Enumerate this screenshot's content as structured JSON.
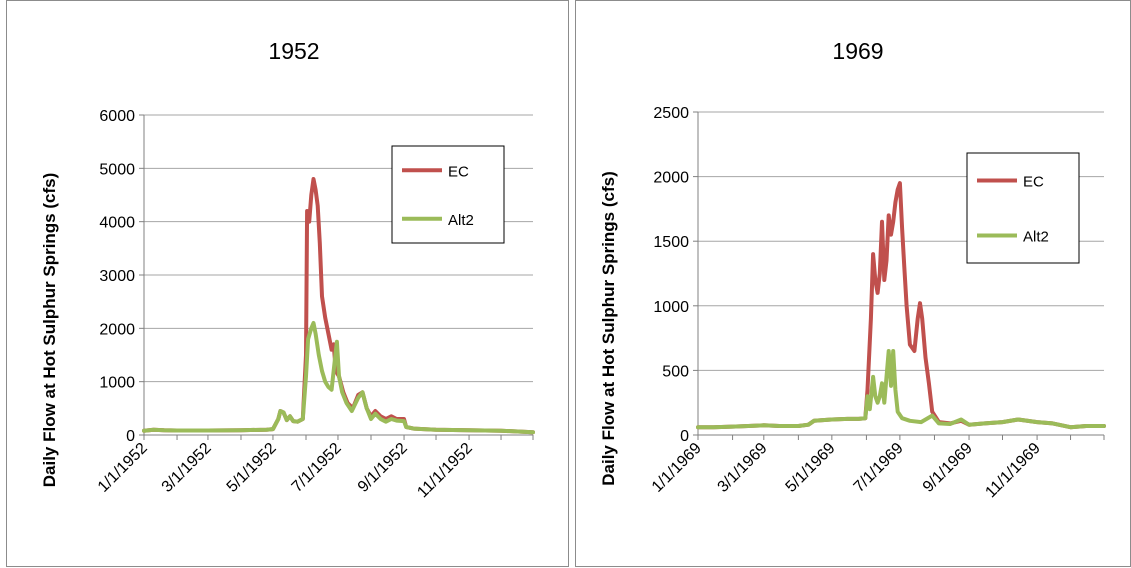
{
  "colors": {
    "EC": "#c0504d",
    "Alt2": "#9bbb59",
    "grid": "#a6a6a6",
    "axis": "#808080"
  },
  "chart_data": [
    {
      "type": "line",
      "title": "1952",
      "ylabel": "Daily Flow at Hot Sulphur Springs (cfs)",
      "xlabel": "",
      "ylim": [
        0,
        6000
      ],
      "yticks": [
        "0",
        "1000",
        "2000",
        "3000",
        "4000",
        "5000",
        "6000"
      ],
      "xlim": [
        "1952-01-01",
        "1952-12-31"
      ],
      "xticks": [
        "1/1/1952",
        "3/1/1952",
        "5/1/1952",
        "7/1/1952",
        "9/1/1952",
        "11/1/1952"
      ],
      "grid": true,
      "legend_position": "top-right",
      "series": [
        {
          "name": "EC",
          "points": [
            [
              "1952-01-01",
              80
            ],
            [
              "1952-01-10",
              100
            ],
            [
              "1952-01-20",
              90
            ],
            [
              "1952-02-01",
              85
            ],
            [
              "1952-03-01",
              85
            ],
            [
              "1952-04-01",
              90
            ],
            [
              "1952-04-25",
              100
            ],
            [
              "1952-05-01",
              110
            ],
            [
              "1952-05-06",
              300
            ],
            [
              "1952-05-08",
              450
            ],
            [
              "1952-05-11",
              420
            ],
            [
              "1952-05-14",
              280
            ],
            [
              "1952-05-17",
              350
            ],
            [
              "1952-05-20",
              260
            ],
            [
              "1952-05-24",
              250
            ],
            [
              "1952-05-29",
              300
            ],
            [
              "1952-06-01",
              1500
            ],
            [
              "1952-06-02",
              4200
            ],
            [
              "1952-06-04",
              4000
            ],
            [
              "1952-06-06",
              4500
            ],
            [
              "1952-06-08",
              4800
            ],
            [
              "1952-06-10",
              4600
            ],
            [
              "1952-06-12",
              4300
            ],
            [
              "1952-06-14",
              3600
            ],
            [
              "1952-06-16",
              2600
            ],
            [
              "1952-06-19",
              2200
            ],
            [
              "1952-06-22",
              1900
            ],
            [
              "1952-06-25",
              1600
            ],
            [
              "1952-06-27",
              1700
            ],
            [
              "1952-06-29",
              1200
            ],
            [
              "1952-07-02",
              1100
            ],
            [
              "1952-07-06",
              800
            ],
            [
              "1952-07-10",
              600
            ],
            [
              "1952-07-15",
              500
            ],
            [
              "1952-07-20",
              750
            ],
            [
              "1952-07-24",
              800
            ],
            [
              "1952-07-28",
              500
            ],
            [
              "1952-08-01",
              350
            ],
            [
              "1952-08-05",
              450
            ],
            [
              "1952-08-10",
              350
            ],
            [
              "1952-08-15",
              300
            ],
            [
              "1952-08-20",
              350
            ],
            [
              "1952-08-25",
              300
            ],
            [
              "1952-09-01",
              300
            ],
            [
              "1952-09-03",
              150
            ],
            [
              "1952-09-10",
              120
            ],
            [
              "1952-10-01",
              100
            ],
            [
              "1952-11-01",
              90
            ],
            [
              "1952-12-01",
              80
            ],
            [
              "1952-12-31",
              50
            ]
          ]
        },
        {
          "name": "Alt2",
          "points": [
            [
              "1952-01-01",
              80
            ],
            [
              "1952-01-10",
              100
            ],
            [
              "1952-01-20",
              90
            ],
            [
              "1952-02-01",
              85
            ],
            [
              "1952-03-01",
              85
            ],
            [
              "1952-04-01",
              90
            ],
            [
              "1952-04-25",
              100
            ],
            [
              "1952-05-01",
              110
            ],
            [
              "1952-05-06",
              300
            ],
            [
              "1952-05-08",
              450
            ],
            [
              "1952-05-11",
              420
            ],
            [
              "1952-05-14",
              280
            ],
            [
              "1952-05-17",
              350
            ],
            [
              "1952-05-20",
              260
            ],
            [
              "1952-05-24",
              250
            ],
            [
              "1952-05-29",
              300
            ],
            [
              "1952-06-01",
              1100
            ],
            [
              "1952-06-03",
              1800
            ],
            [
              "1952-06-06",
              2000
            ],
            [
              "1952-06-08",
              2100
            ],
            [
              "1952-06-10",
              1900
            ],
            [
              "1952-06-13",
              1500
            ],
            [
              "1952-06-16",
              1200
            ],
            [
              "1952-06-19",
              1000
            ],
            [
              "1952-06-22",
              900
            ],
            [
              "1952-06-25",
              850
            ],
            [
              "1952-06-28",
              1400
            ],
            [
              "1952-06-30",
              1750
            ],
            [
              "1952-07-02",
              1100
            ],
            [
              "1952-07-05",
              800
            ],
            [
              "1952-07-09",
              600
            ],
            [
              "1952-07-14",
              450
            ],
            [
              "1952-07-20",
              700
            ],
            [
              "1952-07-24",
              800
            ],
            [
              "1952-07-28",
              500
            ],
            [
              "1952-08-01",
              300
            ],
            [
              "1952-08-05",
              400
            ],
            [
              "1952-08-10",
              300
            ],
            [
              "1952-08-15",
              250
            ],
            [
              "1952-08-20",
              300
            ],
            [
              "1952-08-25",
              270
            ],
            [
              "1952-09-01",
              260
            ],
            [
              "1952-09-03",
              150
            ],
            [
              "1952-09-10",
              120
            ],
            [
              "1952-10-01",
              100
            ],
            [
              "1952-11-01",
              90
            ],
            [
              "1952-12-01",
              80
            ],
            [
              "1952-12-31",
              50
            ]
          ]
        }
      ]
    },
    {
      "type": "line",
      "title": "1969",
      "ylabel": "Daily Flow at Hot Sulphur Springs (cfs)",
      "xlabel": "",
      "ylim": [
        0,
        2500
      ],
      "yticks": [
        "0",
        "500",
        "1000",
        "1500",
        "2000",
        "2500"
      ],
      "xlim": [
        "1969-01-01",
        "1969-12-31"
      ],
      "xticks": [
        "1/1/1969",
        "3/1/1969",
        "5/1/1969",
        "7/1/1969",
        "9/1/1969",
        "11/1/1969"
      ],
      "grid": true,
      "legend_position": "top-right",
      "series": [
        {
          "name": "EC",
          "points": [
            [
              "1969-01-01",
              60
            ],
            [
              "1969-01-15",
              60
            ],
            [
              "1969-02-01",
              65
            ],
            [
              "1969-02-15",
              70
            ],
            [
              "1969-03-01",
              75
            ],
            [
              "1969-03-15",
              70
            ],
            [
              "1969-04-01",
              70
            ],
            [
              "1969-04-10",
              80
            ],
            [
              "1969-04-15",
              110
            ],
            [
              "1969-05-01",
              120
            ],
            [
              "1969-05-15",
              125
            ],
            [
              "1969-05-25",
              125
            ],
            [
              "1969-05-31",
              130
            ],
            [
              "1969-06-02",
              350
            ],
            [
              "1969-06-05",
              900
            ],
            [
              "1969-06-07",
              1400
            ],
            [
              "1969-06-09",
              1200
            ],
            [
              "1969-06-11",
              1100
            ],
            [
              "1969-06-13",
              1250
            ],
            [
              "1969-06-15",
              1650
            ],
            [
              "1969-06-17",
              1200
            ],
            [
              "1969-06-19",
              1350
            ],
            [
              "1969-06-21",
              1700
            ],
            [
              "1969-06-23",
              1550
            ],
            [
              "1969-06-25",
              1650
            ],
            [
              "1969-06-27",
              1800
            ],
            [
              "1969-06-29",
              1900
            ],
            [
              "1969-07-01",
              1950
            ],
            [
              "1969-07-03",
              1600
            ],
            [
              "1969-07-05",
              1300
            ],
            [
              "1969-07-07",
              1000
            ],
            [
              "1969-07-10",
              700
            ],
            [
              "1969-07-14",
              650
            ],
            [
              "1969-07-17",
              900
            ],
            [
              "1969-07-19",
              1020
            ],
            [
              "1969-07-21",
              900
            ],
            [
              "1969-07-24",
              600
            ],
            [
              "1969-07-27",
              400
            ],
            [
              "1969-07-30",
              180
            ],
            [
              "1969-08-05",
              100
            ],
            [
              "1969-08-15",
              90
            ],
            [
              "1969-08-25",
              110
            ],
            [
              "1969-09-01",
              80
            ],
            [
              "1969-09-15",
              90
            ],
            [
              "1969-10-01",
              100
            ],
            [
              "1969-10-15",
              120
            ],
            [
              "1969-11-01",
              100
            ],
            [
              "1969-11-15",
              90
            ],
            [
              "1969-12-01",
              60
            ],
            [
              "1969-12-15",
              70
            ],
            [
              "1969-12-31",
              70
            ]
          ]
        },
        {
          "name": "Alt2",
          "points": [
            [
              "1969-01-01",
              60
            ],
            [
              "1969-01-15",
              60
            ],
            [
              "1969-02-01",
              65
            ],
            [
              "1969-02-15",
              70
            ],
            [
              "1969-03-01",
              75
            ],
            [
              "1969-03-15",
              70
            ],
            [
              "1969-04-01",
              70
            ],
            [
              "1969-04-10",
              80
            ],
            [
              "1969-04-15",
              110
            ],
            [
              "1969-05-01",
              120
            ],
            [
              "1969-05-15",
              125
            ],
            [
              "1969-05-25",
              125
            ],
            [
              "1969-05-31",
              130
            ],
            [
              "1969-06-02",
              300
            ],
            [
              "1969-06-04",
              200
            ],
            [
              "1969-06-07",
              450
            ],
            [
              "1969-06-09",
              300
            ],
            [
              "1969-06-11",
              250
            ],
            [
              "1969-06-13",
              300
            ],
            [
              "1969-06-15",
              400
            ],
            [
              "1969-06-17",
              250
            ],
            [
              "1969-06-19",
              450
            ],
            [
              "1969-06-21",
              650
            ],
            [
              "1969-06-23",
              380
            ],
            [
              "1969-06-25",
              650
            ],
            [
              "1969-06-27",
              350
            ],
            [
              "1969-06-29",
              180
            ],
            [
              "1969-07-03",
              130
            ],
            [
              "1969-07-10",
              110
            ],
            [
              "1969-07-20",
              100
            ],
            [
              "1969-07-30",
              150
            ],
            [
              "1969-08-05",
              90
            ],
            [
              "1969-08-15",
              85
            ],
            [
              "1969-08-25",
              120
            ],
            [
              "1969-09-01",
              80
            ],
            [
              "1969-09-15",
              90
            ],
            [
              "1969-10-01",
              100
            ],
            [
              "1969-10-15",
              120
            ],
            [
              "1969-11-01",
              100
            ],
            [
              "1969-11-15",
              90
            ],
            [
              "1969-12-01",
              60
            ],
            [
              "1969-12-15",
              70
            ],
            [
              "1969-12-31",
              70
            ]
          ]
        }
      ]
    }
  ]
}
